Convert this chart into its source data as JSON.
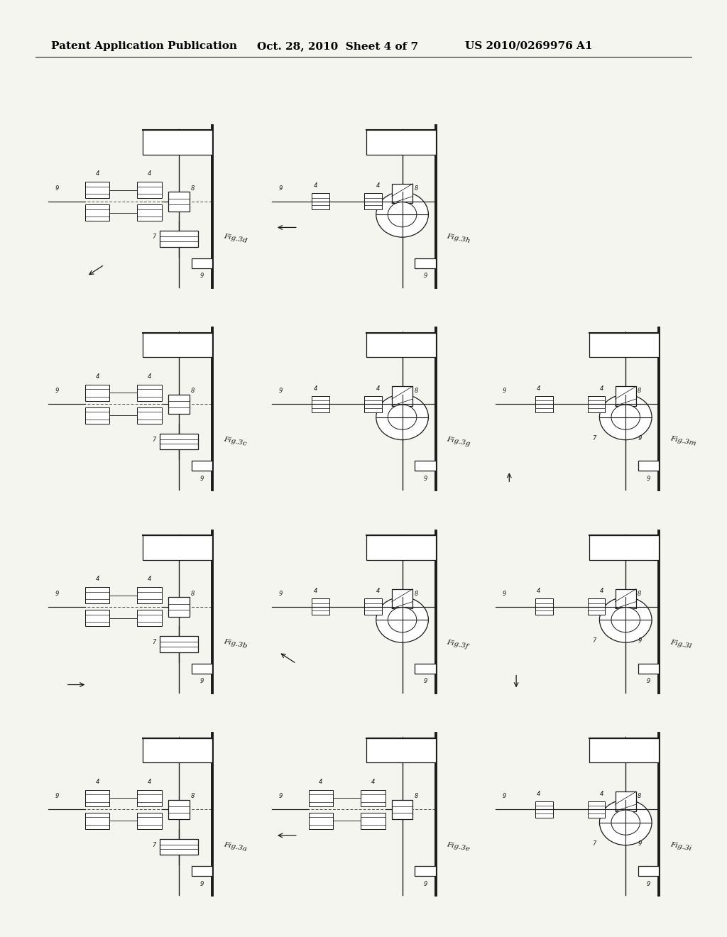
{
  "background_color": "#f5f5f0",
  "header_left": "Patent Application Publication",
  "header_center": "Oct. 28, 2010  Sheet 4 of 7",
  "header_right": "US 2010/0269976 A1",
  "header_fontsize": 11,
  "fig_label_fontsize": 7.5,
  "num_label_fontsize": 6,
  "line_color": "#1a1a1a",
  "page_width": 10.24,
  "page_height": 13.2,
  "diagrams": [
    {
      "col": 0,
      "row": 0,
      "label": "Fig.3d",
      "variant": "d",
      "arrow": "up-right"
    },
    {
      "col": 1,
      "row": 0,
      "label": "Fig.3h",
      "variant": "h",
      "arrow": "left"
    },
    {
      "col": 0,
      "row": 1,
      "label": "Fig.3c",
      "variant": "c",
      "arrow": "none"
    },
    {
      "col": 1,
      "row": 1,
      "label": "Fig.3g",
      "variant": "g",
      "arrow": "none"
    },
    {
      "col": 2,
      "row": 1,
      "label": "Fig.3m",
      "variant": "m",
      "arrow": "up"
    },
    {
      "col": 0,
      "row": 2,
      "label": "Fig.3b",
      "variant": "b",
      "arrow": "right"
    },
    {
      "col": 1,
      "row": 2,
      "label": "Fig.3f",
      "variant": "f",
      "arrow": "up-left"
    },
    {
      "col": 2,
      "row": 2,
      "label": "Fig.3l",
      "variant": "l",
      "arrow": "down"
    },
    {
      "col": 0,
      "row": 3,
      "label": "Fig.3a",
      "variant": "a",
      "arrow": "none"
    },
    {
      "col": 1,
      "row": 3,
      "label": "Fig.3e",
      "variant": "e",
      "arrow": "left"
    },
    {
      "col": 2,
      "row": 3,
      "label": "Fig.3i",
      "variant": "i",
      "arrow": "none"
    }
  ]
}
